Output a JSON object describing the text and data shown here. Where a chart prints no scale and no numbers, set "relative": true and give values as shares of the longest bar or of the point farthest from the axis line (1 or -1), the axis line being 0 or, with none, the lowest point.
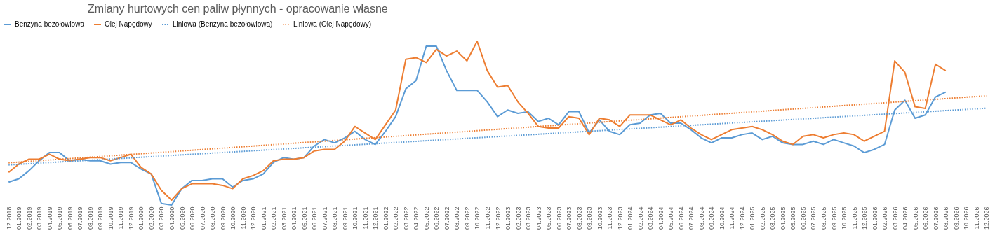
{
  "chart_data": {
    "type": "line",
    "title": "Zmiany hurtowych cen paliw płynnych - opracowanie własne",
    "relative": true,
    "grid": false,
    "legend": "top",
    "categories": [
      "12.2018",
      "01.2019",
      "02.2019",
      "03.2019",
      "04.2019",
      "05.2019",
      "06.2019",
      "07.2019",
      "08.2019",
      "09.2019",
      "10.2019",
      "11.2019",
      "12.2019",
      "01.2020",
      "02.2020",
      "03.2020",
      "04.2020",
      "05.2020",
      "06.2020",
      "07.2020",
      "08.2020",
      "09.2020",
      "10.2020",
      "11.2020",
      "12.2020",
      "01.2021",
      "02.2021",
      "03.2021",
      "04.2021",
      "05.2021",
      "06.2021",
      "07.2021",
      "08.2021",
      "09.2021",
      "10.2021",
      "11.2021",
      "12.2021",
      "01.2022",
      "02.2022",
      "03.2022",
      "04.2022",
      "05.2022",
      "06.2022",
      "07.2022",
      "08.2022",
      "09.2022",
      "10.2022",
      "11.2022",
      "12.2022",
      "01.2023",
      "02.2023",
      "03.2023",
      "04.2023",
      "05.2023",
      "06.2023",
      "07.2023",
      "08.2023",
      "09.2023",
      "10.2023",
      "11.2023",
      "12.2023",
      "01.2024",
      "02.2024",
      "03.2024",
      "04.2024",
      "05.2024",
      "06.2024",
      "07.2024",
      "08.2024",
      "09.2024",
      "10.2024",
      "11.2024",
      "12.2024",
      "01.2025",
      "02.2025",
      "03.2025",
      "04.2025",
      "05.2025",
      "06.2025",
      "07.2025",
      "08.2025",
      "09.2025",
      "10.2025",
      "11.2025",
      "12.2025",
      "01.2026",
      "02.2026",
      "03.2026",
      "04.2026",
      "05.2026",
      "06.2026",
      "07.2026",
      "08.2026",
      "09.2026",
      "10.2026",
      "11.2026",
      "12.2026"
    ],
    "series": [
      {
        "name": "Benzyna bezołowiowa",
        "color": "#5b9bd5",
        "line_style": "solid",
        "values": [
          0.14,
          0.16,
          0.21,
          0.27,
          0.32,
          0.32,
          0.27,
          0.28,
          0.27,
          0.27,
          0.25,
          0.26,
          0.26,
          0.22,
          0.19,
          0.01,
          0,
          0.1,
          0.15,
          0.15,
          0.16,
          0.16,
          0.11,
          0.15,
          0.16,
          0.19,
          0.26,
          0.29,
          0.28,
          0.29,
          0.36,
          0.4,
          0.38,
          0.41,
          0.45,
          0.4,
          0.37,
          0.45,
          0.54,
          0.71,
          0.76,
          0.97,
          0.97,
          0.82,
          0.7,
          0.7,
          0.7,
          0.63,
          0.54,
          0.58,
          0.56,
          0.57,
          0.51,
          0.53,
          0.49,
          0.57,
          0.57,
          0.44,
          0.52,
          0.45,
          0.43,
          0.49,
          0.5,
          0.55,
          0.56,
          0.5,
          0.5,
          0.46,
          0.41,
          0.38,
          0.41,
          0.41,
          0.43,
          0.44,
          0.4,
          0.42,
          0.38,
          0.37,
          0.37,
          0.39,
          0.37,
          0.4,
          0.38,
          0.36,
          0.32,
          0.34,
          0.37,
          0.58,
          0.64,
          0.53,
          0.55,
          0.66,
          0.69,
          null,
          null,
          null,
          null
        ]
      },
      {
        "name": "Olej Napędowy",
        "color": "#ed7d31",
        "line_style": "solid",
        "values": [
          0.2,
          0.25,
          0.28,
          0.28,
          0.31,
          0.28,
          0.27,
          0.28,
          0.29,
          0.29,
          0.27,
          0.29,
          0.31,
          0.23,
          0.19,
          0.09,
          0.03,
          0.1,
          0.13,
          0.13,
          0.13,
          0.12,
          0.1,
          0.16,
          0.18,
          0.21,
          0.27,
          0.28,
          0.28,
          0.29,
          0.33,
          0.34,
          0.34,
          0.39,
          0.48,
          0.44,
          0.4,
          0.49,
          0.58,
          0.89,
          0.9,
          0.87,
          0.95,
          0.91,
          0.94,
          0.88,
          1,
          0.82,
          0.72,
          0.73,
          0.63,
          0.56,
          0.48,
          0.47,
          0.47,
          0.54,
          0.53,
          0.43,
          0.53,
          0.52,
          0.48,
          0.55,
          0.55,
          0.55,
          0.52,
          0.49,
          0.52,
          0.47,
          0.43,
          0.4,
          0.43,
          0.46,
          0.47,
          0.48,
          0.46,
          0.43,
          0.39,
          0.37,
          0.42,
          0.43,
          0.41,
          0.43,
          0.44,
          0.43,
          0.39,
          0.42,
          0.45,
          0.88,
          0.81,
          0.6,
          0.59,
          0.86,
          0.82,
          null,
          null,
          null,
          null
        ]
      },
      {
        "name": "Liniowa (Benzyna bezołowiowa)",
        "color": "#5b9bd5",
        "line_style": "dotted",
        "x": [
          "12.2018",
          "12.2026"
        ],
        "values": [
          0.245,
          0.591
        ]
      },
      {
        "name": "Liniowa (Olej Napędowy)",
        "color": "#ed7d31",
        "line_style": "dotted",
        "x": [
          "12.2018",
          "12.2026"
        ],
        "values": [
          0.258,
          0.667
        ]
      }
    ]
  }
}
